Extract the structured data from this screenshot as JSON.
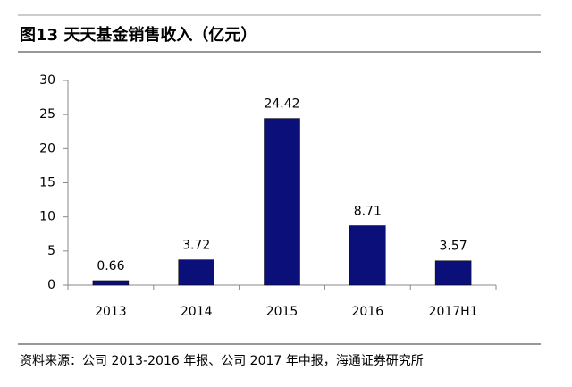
{
  "chart_data": {
    "type": "bar",
    "title": "图13 天天基金销售收入（亿元）",
    "categories": [
      "2013",
      "2014",
      "2015",
      "2016",
      "2017H1"
    ],
    "values": [
      0.66,
      3.72,
      24.42,
      8.71,
      3.57
    ],
    "color": "#0b0f7a",
    "ylim": [
      0,
      30
    ],
    "yticks": [
      0,
      5,
      10,
      15,
      20,
      25,
      30
    ],
    "grid": false,
    "source": "资料来源：公司 2013-2016 年报、公司 2017 年中报，海通证券研究所"
  }
}
